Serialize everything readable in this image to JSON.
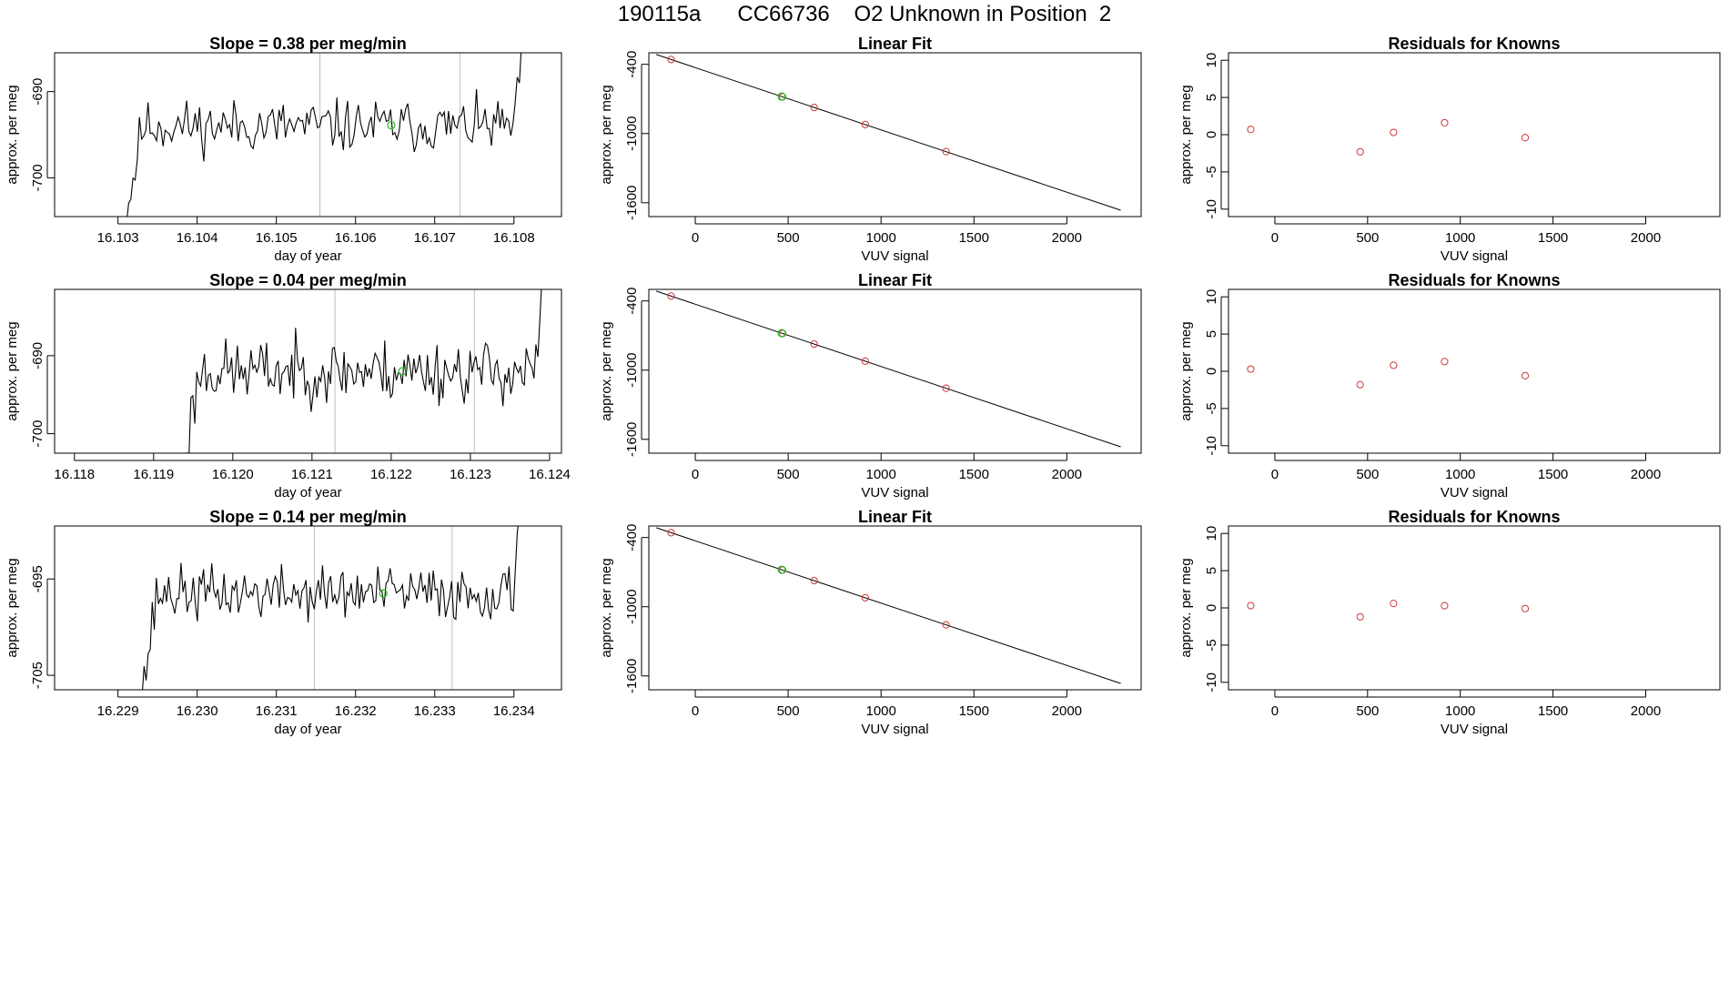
{
  "page": {
    "title": "190115a      CC66736    O2 Unknown in Position  2"
  },
  "colors": {
    "trace": "#000000",
    "standard_point": "#cd3a3a",
    "unknown_point": "#22bb22",
    "marker_line": "#bfbfbf",
    "axis": "#000000"
  },
  "chart_data": [
    {
      "type": "line",
      "row": 0,
      "col": 0,
      "title": "Slope =  0.38  per meg/min",
      "xlabel": "day of year",
      "ylabel": "approx. per meg",
      "xlim": [
        16.1022,
        16.1086
      ],
      "ylim": [
        -704.5,
        -685.5
      ],
      "xticks": [
        16.103,
        16.104,
        16.105,
        16.106,
        16.107,
        16.108
      ],
      "xticklabels": [
        "16.103",
        "16.104",
        "16.105",
        "16.106",
        "16.107",
        "16.108"
      ],
      "yticks": [
        -690,
        -700
      ],
      "yticklabels": [
        "-690",
        "-700"
      ],
      "vlines": [
        16.10555,
        16.10732
      ],
      "series_seed": 11,
      "series_start": 16.103,
      "series_end": 16.10815,
      "series_base": -694.0,
      "series_noise": 1.5,
      "unknown_point": {
        "x": 16.10645,
        "y": -693.9
      }
    },
    {
      "type": "scatter",
      "row": 0,
      "col": 1,
      "title": "Linear Fit",
      "xlabel": "VUV signal",
      "ylabel": "approx. per meg",
      "xlim": [
        -250,
        2400
      ],
      "ylim": [
        -1720,
        -300
      ],
      "xticks": [
        0,
        500,
        1000,
        1500,
        2000
      ],
      "xticklabels": [
        "0",
        "500",
        "1000",
        "1500",
        "2000"
      ],
      "yticks": [
        -400,
        -1000,
        -1600
      ],
      "yticklabels": [
        "-400",
        "-1000",
        "-1600"
      ],
      "fit": {
        "x": [
          -210,
          2290
        ],
        "y": [
          -315,
          -1665
        ]
      },
      "points": [
        {
          "x": -130,
          "y": -358
        },
        {
          "x": 470,
          "y": -682
        },
        {
          "x": 640,
          "y": -774
        },
        {
          "x": 915,
          "y": -922
        },
        {
          "x": 1350,
          "y": -1157
        }
      ],
      "unknown_point": {
        "x": 465,
        "y": -679
      }
    },
    {
      "type": "scatter",
      "row": 0,
      "col": 2,
      "title": "Residuals for Knowns",
      "xlabel": "VUV signal",
      "ylabel": "approx. per meg",
      "xlim": [
        -250,
        2400
      ],
      "ylim": [
        -11,
        11
      ],
      "xticks": [
        0,
        500,
        1000,
        1500,
        2000
      ],
      "xticklabels": [
        "0",
        "500",
        "1000",
        "1500",
        "2000"
      ],
      "yticks": [
        10,
        5,
        0,
        -5,
        -10
      ],
      "yticklabels": [
        "10",
        "5",
        "0",
        "-5",
        "-10"
      ],
      "points": [
        {
          "x": -130,
          "y": 0.7
        },
        {
          "x": 460,
          "y": -2.3
        },
        {
          "x": 640,
          "y": 0.3
        },
        {
          "x": 915,
          "y": 1.6
        },
        {
          "x": 1350,
          "y": -0.4
        }
      ]
    },
    {
      "type": "line",
      "row": 1,
      "col": 0,
      "title": "Slope =  0.04  per meg/min",
      "xlabel": "day of year",
      "ylabel": "approx. per meg",
      "xlim": [
        16.11775,
        16.12415
      ],
      "ylim": [
        -702.5,
        -681.5
      ],
      "xticks": [
        16.118,
        16.119,
        16.12,
        16.121,
        16.122,
        16.123,
        16.124
      ],
      "xticklabels": [
        "16.118",
        "16.119",
        "16.120",
        "16.121",
        "16.122",
        "16.123",
        "16.124"
      ],
      "yticks": [
        -690,
        -700
      ],
      "yticklabels": [
        "-690",
        "-700"
      ],
      "vlines": [
        16.12129,
        16.12305
      ],
      "series_seed": 23,
      "series_start": 16.1193,
      "series_end": 16.12395,
      "series_base": -692.0,
      "series_noise": 2.0,
      "unknown_point": {
        "x": 16.12214,
        "y": -692.0
      }
    },
    {
      "type": "scatter",
      "row": 1,
      "col": 1,
      "title": "Linear Fit",
      "xlabel": "VUV signal",
      "ylabel": "approx. per meg",
      "xlim": [
        -250,
        2400
      ],
      "ylim": [
        -1720,
        -300
      ],
      "xticks": [
        0,
        500,
        1000,
        1500,
        2000
      ],
      "xticklabels": [
        "0",
        "500",
        "1000",
        "1500",
        "2000"
      ],
      "yticks": [
        -400,
        -1000,
        -1600
      ],
      "yticklabels": [
        "-400",
        "-1000",
        "-1600"
      ],
      "fit": {
        "x": [
          -210,
          2290
        ],
        "y": [
          -315,
          -1665
        ]
      },
      "points": [
        {
          "x": -130,
          "y": -358
        },
        {
          "x": 470,
          "y": -682
        },
        {
          "x": 640,
          "y": -774
        },
        {
          "x": 915,
          "y": -922
        },
        {
          "x": 1350,
          "y": -1157
        }
      ],
      "unknown_point": {
        "x": 465,
        "y": -679
      }
    },
    {
      "type": "scatter",
      "row": 1,
      "col": 2,
      "title": "Residuals for Knowns",
      "xlabel": "VUV signal",
      "ylabel": "approx. per meg",
      "xlim": [
        -250,
        2400
      ],
      "ylim": [
        -11,
        11
      ],
      "xticks": [
        0,
        500,
        1000,
        1500,
        2000
      ],
      "xticklabels": [
        "0",
        "500",
        "1000",
        "1500",
        "2000"
      ],
      "yticks": [
        10,
        5,
        0,
        -5,
        -10
      ],
      "yticklabels": [
        "10",
        "5",
        "0",
        "-5",
        "-10"
      ],
      "points": [
        {
          "x": -130,
          "y": 0.3
        },
        {
          "x": 460,
          "y": -1.8
        },
        {
          "x": 640,
          "y": 0.8
        },
        {
          "x": 915,
          "y": 1.3
        },
        {
          "x": 1350,
          "y": -0.6
        }
      ]
    },
    {
      "type": "line",
      "row": 2,
      "col": 0,
      "title": "Slope =  0.14  per meg/min",
      "xlabel": "day of year",
      "ylabel": "approx. per meg",
      "xlim": [
        16.2282,
        16.2346
      ],
      "ylim": [
        -706.5,
        -689.5
      ],
      "xticks": [
        16.229,
        16.23,
        16.231,
        16.232,
        16.233,
        16.234
      ],
      "xticklabels": [
        "16.229",
        "16.230",
        "16.231",
        "16.232",
        "16.233",
        "16.234"
      ],
      "yticks": [
        -695,
        -705
      ],
      "yticklabels": [
        "-695",
        "-705"
      ],
      "vlines": [
        16.23148,
        16.23322
      ],
      "series_seed": 37,
      "series_start": 16.2292,
      "series_end": 16.23412,
      "series_base": -696.5,
      "series_noise": 1.4,
      "unknown_point": {
        "x": 16.23235,
        "y": -696.5
      }
    },
    {
      "type": "scatter",
      "row": 2,
      "col": 1,
      "title": "Linear Fit",
      "xlabel": "VUV signal",
      "ylabel": "approx. per meg",
      "xlim": [
        -250,
        2400
      ],
      "ylim": [
        -1720,
        -300
      ],
      "xticks": [
        0,
        500,
        1000,
        1500,
        2000
      ],
      "xticklabels": [
        "0",
        "500",
        "1000",
        "1500",
        "2000"
      ],
      "yticks": [
        -400,
        -1000,
        -1600
      ],
      "yticklabels": [
        "-400",
        "-1000",
        "-1600"
      ],
      "fit": {
        "x": [
          -210,
          2290
        ],
        "y": [
          -315,
          -1665
        ]
      },
      "points": [
        {
          "x": -130,
          "y": -358
        },
        {
          "x": 470,
          "y": -682
        },
        {
          "x": 640,
          "y": -774
        },
        {
          "x": 915,
          "y": -922
        },
        {
          "x": 1350,
          "y": -1157
        }
      ],
      "unknown_point": {
        "x": 465,
        "y": -679
      }
    },
    {
      "type": "scatter",
      "row": 2,
      "col": 2,
      "title": "Residuals for Knowns",
      "xlabel": "VUV signal",
      "ylabel": "approx. per meg",
      "xlim": [
        -250,
        2400
      ],
      "ylim": [
        -11,
        11
      ],
      "xticks": [
        0,
        500,
        1000,
        1500,
        2000
      ],
      "xticklabels": [
        "0",
        "500",
        "1000",
        "1500",
        "2000"
      ],
      "yticks": [
        10,
        5,
        0,
        -5,
        -10
      ],
      "yticklabels": [
        "10",
        "5",
        "0",
        "-5",
        "-10"
      ],
      "points": [
        {
          "x": -130,
          "y": 0.3
        },
        {
          "x": 460,
          "y": -1.2
        },
        {
          "x": 640,
          "y": 0.6
        },
        {
          "x": 915,
          "y": 0.3
        },
        {
          "x": 1350,
          "y": -0.1
        }
      ]
    }
  ]
}
